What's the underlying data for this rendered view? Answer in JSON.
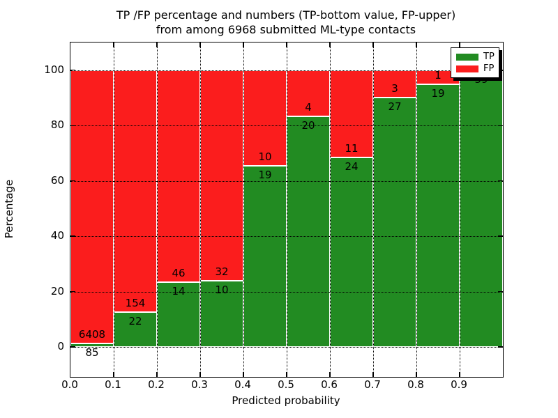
{
  "title": {
    "line1": "TP /FP percentage and numbers (TP-bottom value, FP-upper)",
    "line2": "from among 6968 submitted ML-type contacts"
  },
  "axes": {
    "xlabel": "Predicted probability",
    "ylabel": "Percentage",
    "x_tick_labels": [
      "0.0",
      "0.1",
      "0.2",
      "0.3",
      "0.4",
      "0.5",
      "0.6",
      "0.7",
      "0.8",
      "0.9"
    ],
    "y_tick_labels": [
      "0",
      "20",
      "40",
      "60",
      "80",
      "100"
    ],
    "y_tick_values": [
      0,
      20,
      40,
      60,
      80,
      100
    ],
    "grid_style": "dotted"
  },
  "legend": {
    "items": [
      {
        "label": "TP",
        "color": "#228B22"
      },
      {
        "label": "FP",
        "color": "#FB1D1D"
      }
    ],
    "position": "upper right"
  },
  "chart_data": {
    "type": "bar",
    "stacked": true,
    "normalized_to_percent": true,
    "title": "TP /FP percentage and numbers (TP-bottom value, FP-upper) from among 6968 submitted ML-type contacts",
    "xlabel": "Predicted probability",
    "ylabel": "Percentage",
    "total_contacts": 6968,
    "categories": [
      "0.0-0.1",
      "0.1-0.2",
      "0.2-0.3",
      "0.3-0.4",
      "0.4-0.5",
      "0.5-0.6",
      "0.6-0.7",
      "0.7-0.8",
      "0.8-0.9",
      "0.9-1.0"
    ],
    "bin_width": 0.1,
    "series": [
      {
        "name": "TP",
        "color": "#228B22",
        "values": [
          85,
          22,
          14,
          10,
          19,
          20,
          24,
          27,
          19,
          59
        ]
      },
      {
        "name": "FP",
        "color": "#FB1D1D",
        "values": [
          6408,
          154,
          46,
          32,
          10,
          4,
          11,
          3,
          1,
          0
        ]
      }
    ],
    "tp_percent_of_bin": [
      1.3,
      12.5,
      23.3,
      23.8,
      65.5,
      83.3,
      68.6,
      90.0,
      95.0,
      100.0
    ],
    "annotation_rule": "TP count below segment boundary, FP count above segment boundary",
    "xlim": [
      0.0,
      1.0
    ],
    "ylim_shown_ticks": [
      0,
      100
    ],
    "legend_position": "upper right",
    "grid": "dotted"
  }
}
